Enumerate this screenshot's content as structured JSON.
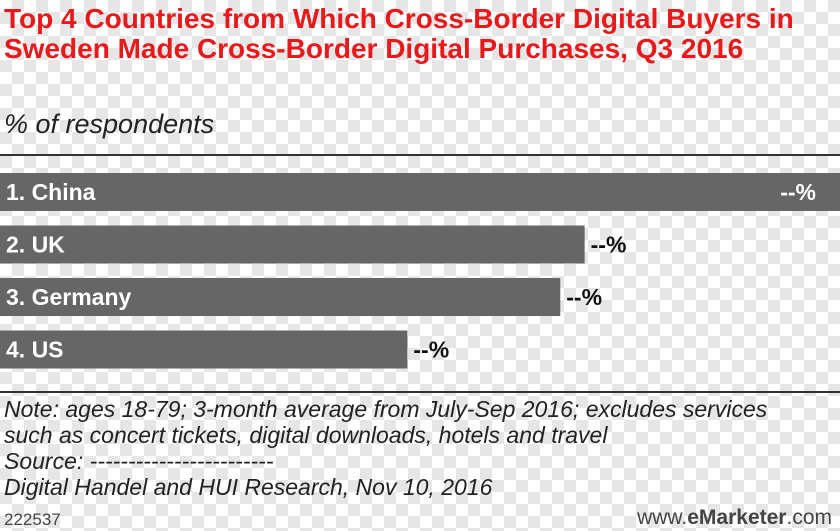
{
  "title": "Top 4 Countries from Which Cross-Border Digital Buyers in Sweden Made Cross-Border Digital Purchases, Q3 2016",
  "subtitle": "% of respondents",
  "chart_data": {
    "type": "bar",
    "orientation": "horizontal",
    "title": "Top 4 Countries from Which Cross-Border Digital Buyers in Sweden Made Cross-Border Digital Purchases, Q3 2016",
    "subtitle": "% of respondents",
    "categories": [
      "1. China",
      "2. UK",
      "3. Germany",
      "4. US"
    ],
    "value_labels": [
      "--%",
      "--%",
      "--%",
      "--%"
    ],
    "relative_values": [
      1.0,
      0.696,
      0.667,
      0.485
    ],
    "bar_color": "#666666"
  },
  "notes": {
    "line1": "Note: ages 18-79; 3-month average from July-Sep 2016; excludes services",
    "line2": "such as concert tickets, digital downloads, hotels and travel",
    "source_label": "Source: ------------------------",
    "source": "Digital Handel and HUI Research, Nov 10, 2016"
  },
  "footer": {
    "chart_id": "222537",
    "brand_prefix": "www.",
    "brand_bold": "eMarketer",
    "brand_suffix": ".com"
  }
}
